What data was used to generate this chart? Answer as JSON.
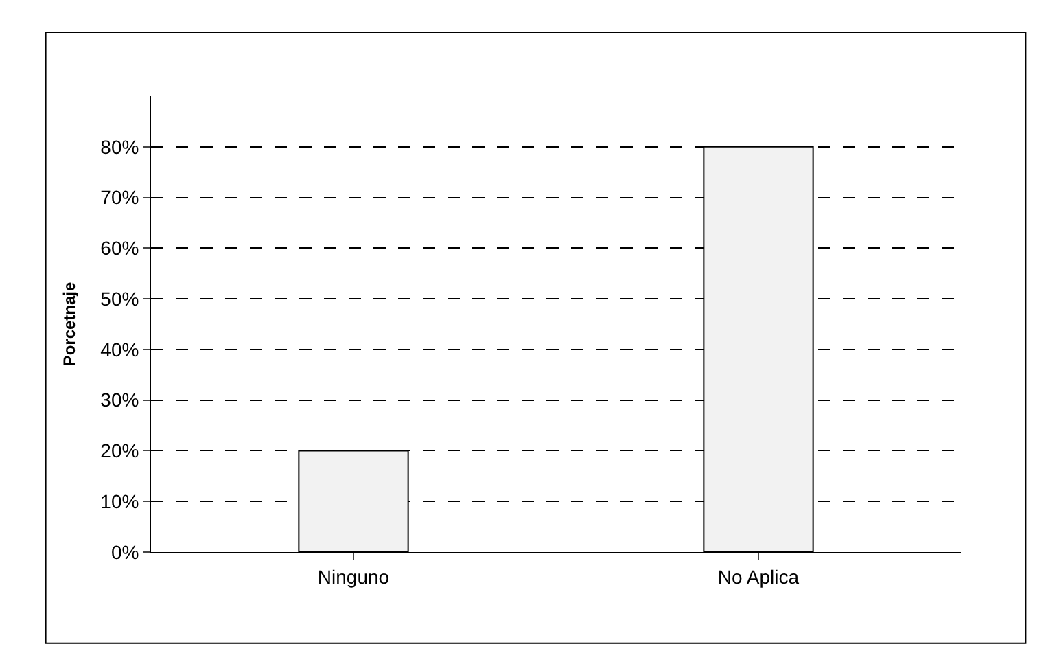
{
  "chart_data": {
    "type": "bar",
    "ylabel": "Porcetnaje",
    "categories": [
      "Ninguno",
      "No Aplica"
    ],
    "series": [
      {
        "color": "#f2f2f2",
        "values": [
          20,
          80
        ]
      }
    ],
    "ylim": [
      0,
      90
    ],
    "yticks": [
      {
        "value": 0,
        "label": "0%"
      },
      {
        "value": 10,
        "label": "10%"
      },
      {
        "value": 20,
        "label": "20%"
      },
      {
        "value": 30,
        "label": "30%"
      },
      {
        "value": 40,
        "label": "40%"
      },
      {
        "value": 50,
        "label": "50%"
      },
      {
        "value": 60,
        "label": "60%"
      },
      {
        "value": 70,
        "label": "70%"
      },
      {
        "value": 80,
        "label": "80%"
      }
    ],
    "grid": "y",
    "legend": false
  }
}
